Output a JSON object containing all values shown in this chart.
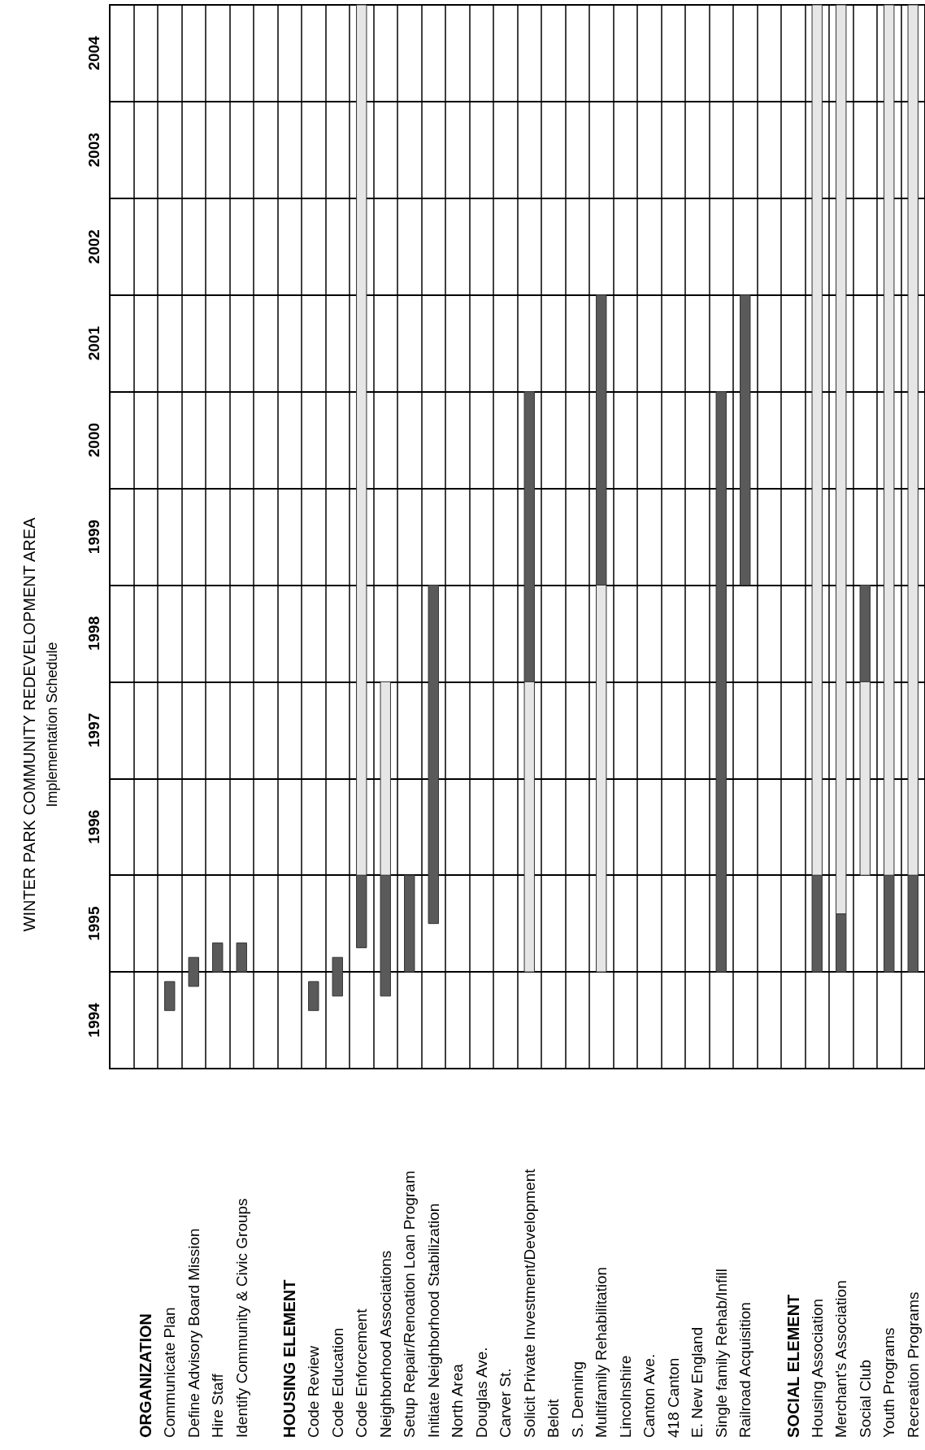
{
  "chart_data": {
    "type": "bar",
    "title": "WINTER PARK COMMUNITY REDEVELOPMENT AREA",
    "subtitle": "Implementation Schedule",
    "categories": [
      null,
      "ORGANIZATION",
      "Communicate Plan",
      "Define Advisory Board Mission",
      "Hire Staff",
      "Identify Community & Civic Groups",
      null,
      "HOUSING ELEMENT",
      "Code Review",
      "Code Education",
      "Code Enforcement",
      "Neighborhood Associations",
      "Setup Repair/Renoation Loan Program",
      "Initiate Neighborhood Stabilization",
      "North Area",
      "Douglas Ave.",
      "Carver St.",
      "Solicit Private Investment/Development",
      "Beloit",
      "S. Denning",
      "Multifamily Rehabilitation",
      "Lincolnshire",
      "Canton Ave.",
      "418 Canton",
      "E. New England",
      "Single family Rehab/Infill",
      "Railroad Acquisition",
      null,
      "SOCIAL ELEMENT",
      "Housing Association",
      "Merchant's Association",
      "Social Club",
      "Youth Programs",
      "Recreation Programs"
    ],
    "series": [
      {
        "color": "#5a5a5a",
        "base": [
          null,
          null,
          1994.6,
          1994.85,
          1995,
          1995,
          null,
          null,
          1994.6,
          1994.75,
          1995.25,
          1994.75,
          1995,
          1995.5,
          null,
          null,
          null,
          1998,
          null,
          null,
          1999,
          null,
          null,
          null,
          null,
          1995,
          1999,
          null,
          null,
          1995,
          1995,
          1998,
          1995,
          1995
        ],
        "values": [
          null,
          null,
          0.3,
          0.3,
          0.3,
          0.3,
          null,
          null,
          0.3,
          0.4,
          0.75,
          1.25,
          1,
          3.5,
          null,
          null,
          null,
          3,
          null,
          null,
          3,
          null,
          null,
          null,
          null,
          6,
          3,
          null,
          null,
          1,
          0.6,
          1,
          1,
          1
        ]
      },
      {
        "color": "#e6e6e6",
        "base": [
          null,
          null,
          null,
          null,
          null,
          null,
          null,
          null,
          null,
          null,
          1996,
          1996,
          null,
          null,
          null,
          null,
          null,
          1995,
          null,
          null,
          1995,
          null,
          null,
          null,
          null,
          null,
          null,
          null,
          null,
          1996,
          1995.6,
          1996,
          1996,
          1996
        ],
        "values": [
          null,
          null,
          null,
          null,
          null,
          null,
          null,
          null,
          null,
          null,
          9,
          2,
          null,
          null,
          null,
          null,
          null,
          3,
          null,
          null,
          4,
          null,
          null,
          null,
          null,
          null,
          null,
          null,
          null,
          9,
          9.4,
          2,
          9,
          9
        ]
      }
    ],
    "ylim": [
      1994,
      2005
    ],
    "yticks": [
      {
        "value": 1994.5,
        "label": "1994"
      },
      {
        "value": 1995,
        "label": null
      },
      {
        "value": 1995.5,
        "label": "1995"
      },
      {
        "value": 1996,
        "label": null
      },
      {
        "value": 1996.5,
        "label": "1996"
      },
      {
        "value": 1997,
        "label": null
      },
      {
        "value": 1997.5,
        "label": "1997"
      },
      {
        "value": 1998,
        "label": null
      },
      {
        "value": 1998.5,
        "label": "1998"
      },
      {
        "value": 1999,
        "label": null
      },
      {
        "value": 1999.5,
        "label": "1999"
      },
      {
        "value": 2000,
        "label": null
      },
      {
        "value": 2000.5,
        "label": "2000"
      },
      {
        "value": 2001,
        "label": null
      },
      {
        "value": 2001.5,
        "label": "2001"
      },
      {
        "value": 2002,
        "label": null
      },
      {
        "value": 2002.5,
        "label": "2002"
      },
      {
        "value": 2003,
        "label": null
      },
      {
        "value": 2003.5,
        "label": "2003"
      },
      {
        "value": 2004,
        "label": null
      },
      {
        "value": 2004.5,
        "label": "2004"
      }
    ],
    "grid": true
  }
}
